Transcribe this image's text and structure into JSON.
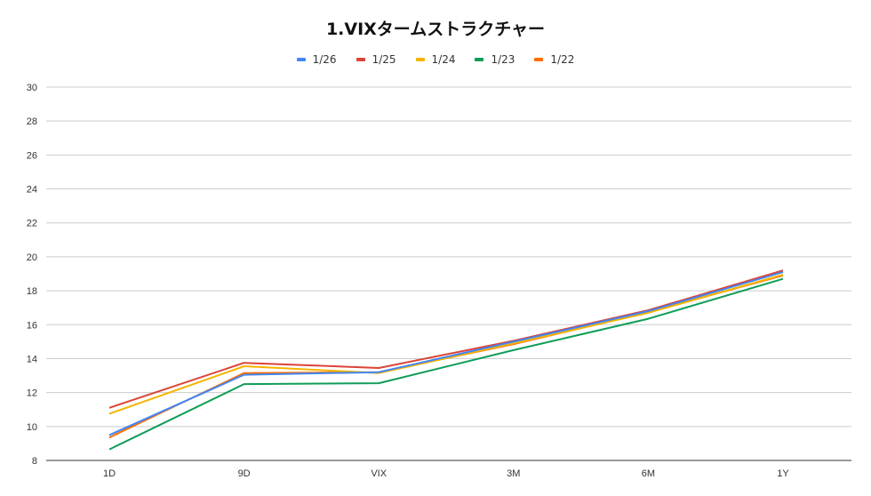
{
  "chart_data": {
    "type": "line",
    "title": "1.VIXタームストラクチャー",
    "categories": [
      "1D",
      "9D",
      "VIX",
      "3M",
      "6M",
      "1Y"
    ],
    "ylim": [
      8,
      30
    ],
    "yticks": [
      8,
      10,
      12,
      14,
      16,
      18,
      20,
      22,
      24,
      26,
      28,
      30
    ],
    "grid": true,
    "legend_position": "top",
    "series": [
      {
        "name": "1/26",
        "color": "#4285f4",
        "values": [
          9.5,
          13.05,
          13.2,
          15.0,
          16.8,
          19.1
        ]
      },
      {
        "name": "1/25",
        "color": "#db4437",
        "values": [
          11.1,
          13.75,
          13.45,
          15.05,
          16.85,
          19.2
        ]
      },
      {
        "name": "1/24",
        "color": "#f4b400",
        "values": [
          10.75,
          13.55,
          13.15,
          14.9,
          16.7,
          18.95
        ]
      },
      {
        "name": "1/23",
        "color": "#0f9d58",
        "values": [
          8.65,
          12.5,
          12.55,
          14.5,
          16.35,
          18.7
        ]
      },
      {
        "name": "1/22",
        "color": "#ff6d00",
        "values": [
          9.35,
          13.15,
          13.2,
          14.85,
          16.75,
          18.9
        ]
      }
    ]
  }
}
